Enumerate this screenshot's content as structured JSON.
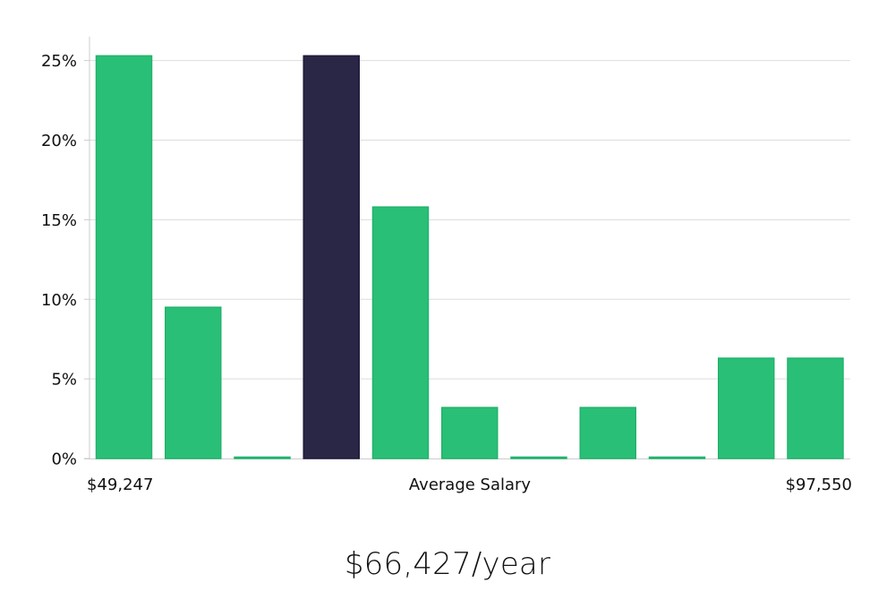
{
  "chart_data": {
    "type": "bar",
    "y_ticks": [
      "0%",
      "5%",
      "10%",
      "15%",
      "20%",
      "25%"
    ],
    "ylim": [
      0,
      26.5
    ],
    "values": [
      25.3,
      9.5,
      0,
      25.3,
      15.8,
      3.2,
      0,
      3.2,
      0,
      6.3,
      6.3
    ],
    "highlight_index": 3,
    "min_label": "$49,247",
    "max_label": "$97,550",
    "xlabel": "Average Salary",
    "grid": true,
    "colors": {
      "bar": "#2abf77",
      "highlight": "#2a2646",
      "grid": "#dddddd",
      "axis": "#cccccc"
    }
  },
  "salary_text": "$66,427/year"
}
